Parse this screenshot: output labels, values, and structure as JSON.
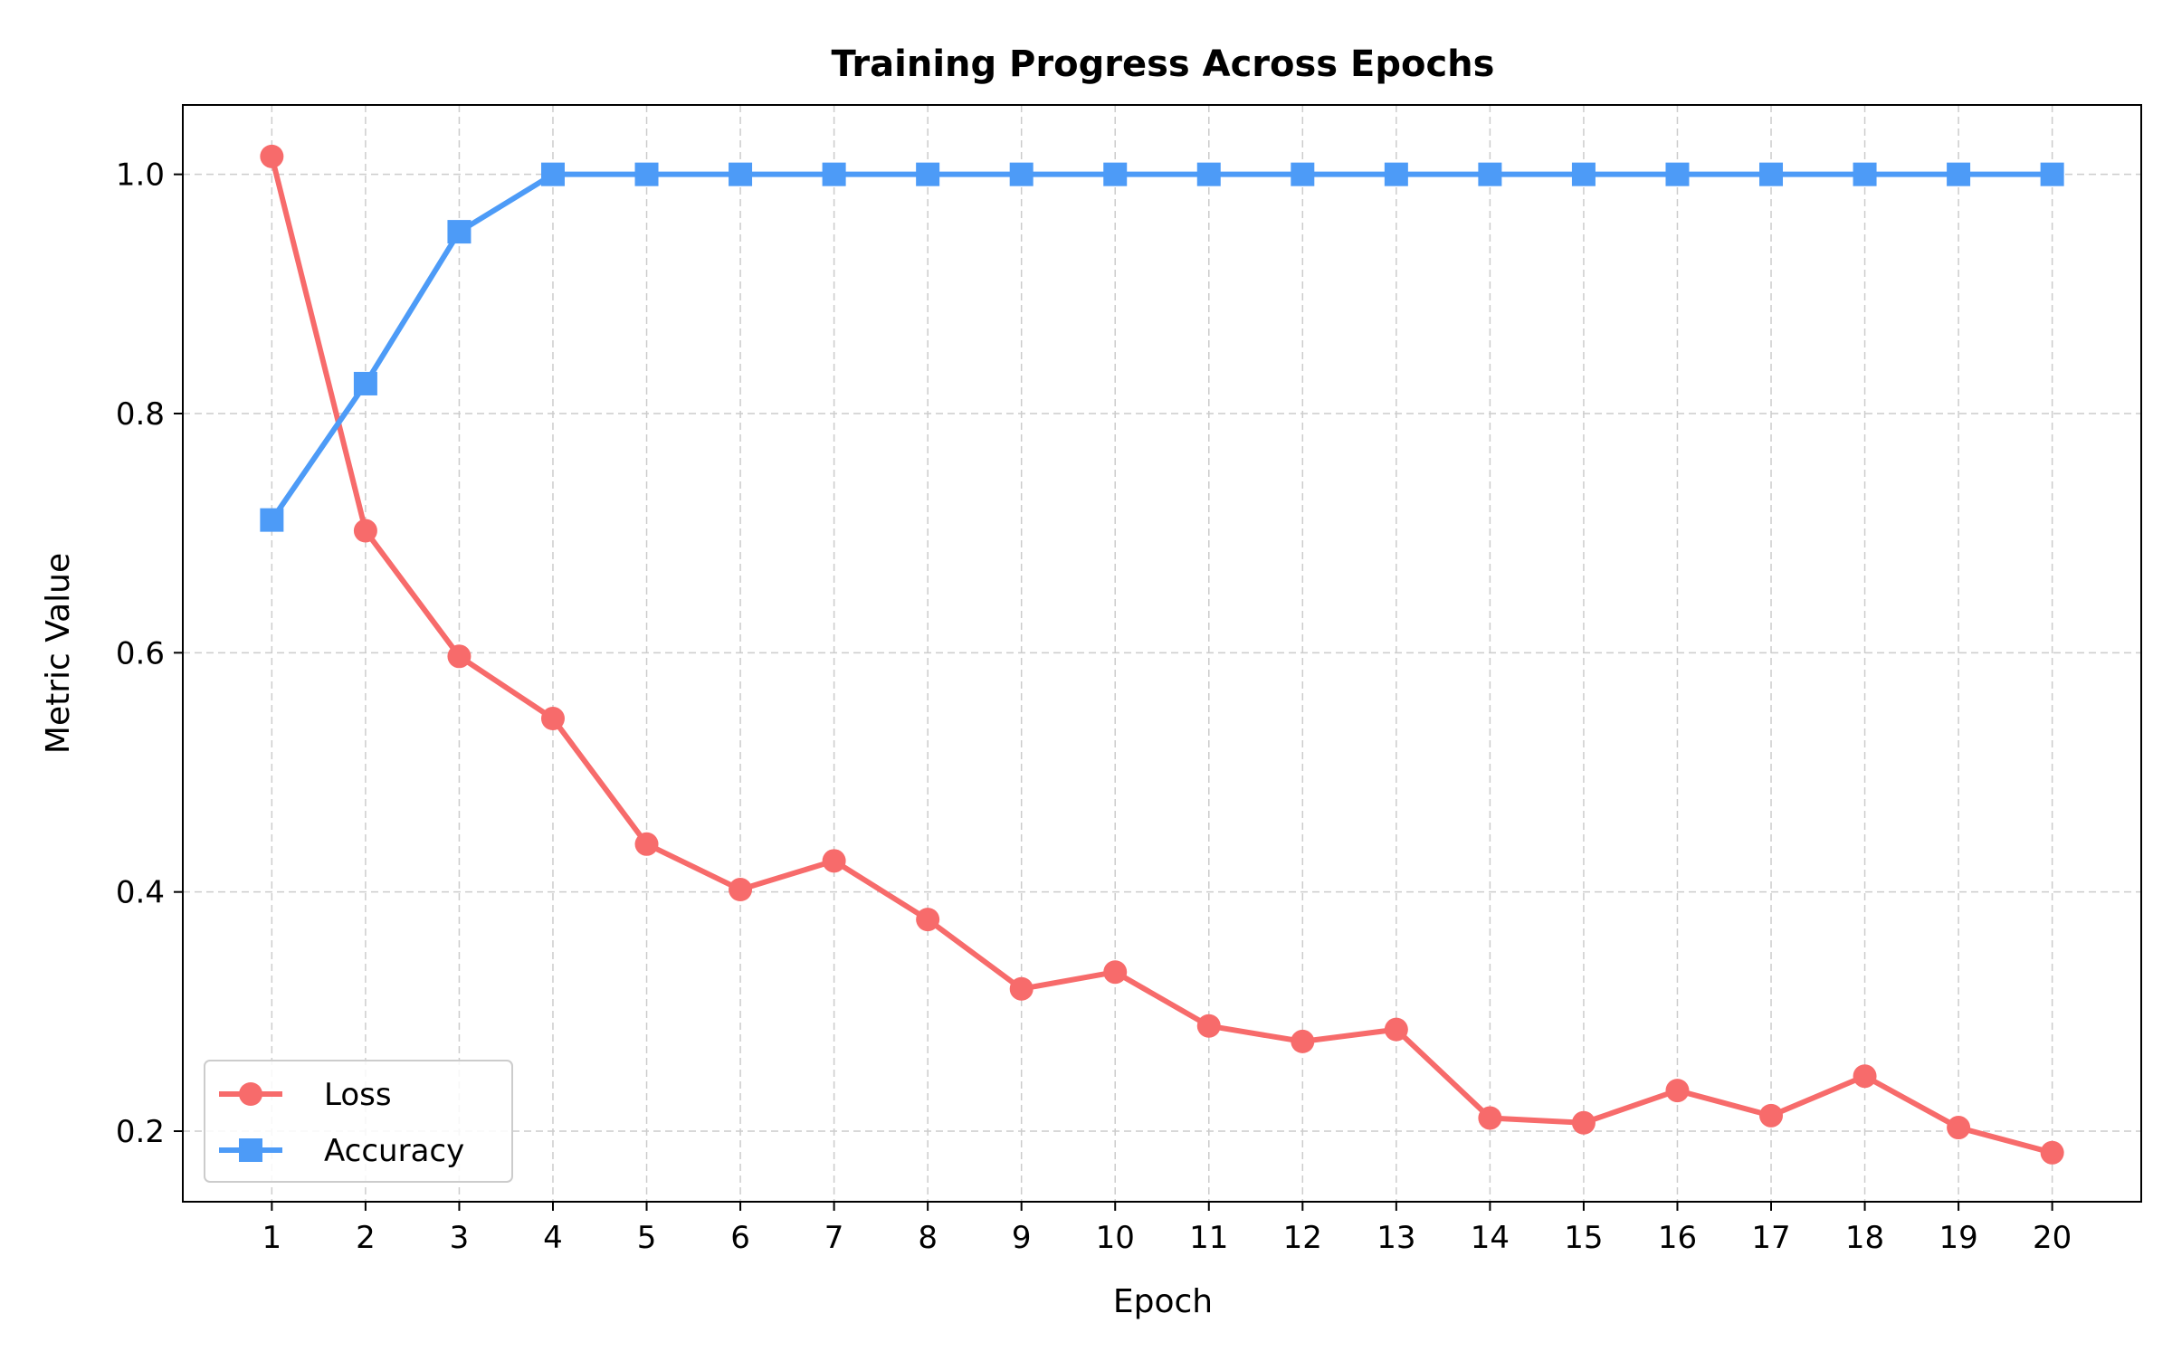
{
  "chart_data": {
    "type": "line",
    "title": "Training Progress Across Epochs",
    "xlabel": "Epoch",
    "ylabel": "Metric Value",
    "x": [
      1,
      2,
      3,
      4,
      5,
      6,
      7,
      8,
      9,
      10,
      11,
      12,
      13,
      14,
      15,
      16,
      17,
      18,
      19,
      20
    ],
    "xlim": [
      0.05,
      20.95
    ],
    "ylim": [
      0.141,
      1.058
    ],
    "yticks": [
      0.2,
      0.4,
      0.6,
      0.8,
      1.0
    ],
    "ytick_labels": [
      "0.2",
      "0.4",
      "0.6",
      "0.8",
      "1.0"
    ],
    "grid": true,
    "legend_position": "lower-left",
    "series": [
      {
        "name": "Loss",
        "marker": "circle",
        "color": "#f76b6b",
        "values": [
          1.015,
          0.702,
          0.597,
          0.545,
          0.44,
          0.402,
          0.426,
          0.377,
          0.319,
          0.333,
          0.288,
          0.275,
          0.285,
          0.211,
          0.207,
          0.234,
          0.213,
          0.246,
          0.203,
          0.182
        ]
      },
      {
        "name": "Accuracy",
        "marker": "square",
        "color": "#4d9bf7",
        "values": [
          0.711,
          0.825,
          0.952,
          1.0,
          1.0,
          1.0,
          1.0,
          1.0,
          1.0,
          1.0,
          1.0,
          1.0,
          1.0,
          1.0,
          1.0,
          1.0,
          1.0,
          1.0,
          1.0,
          1.0
        ]
      }
    ]
  }
}
